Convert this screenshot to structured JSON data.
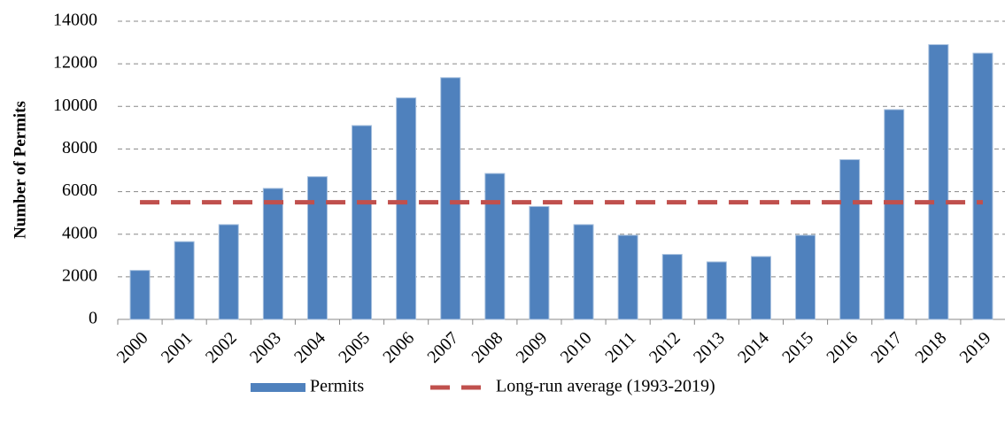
{
  "chart_data": {
    "type": "bar",
    "y_axis_label": "Number of Permits",
    "categories": [
      "2000",
      "2001",
      "2002",
      "2003",
      "2004",
      "2005",
      "2006",
      "2007",
      "2008",
      "2009",
      "2010",
      "2011",
      "2012",
      "2013",
      "2014",
      "2015",
      "2016",
      "2017",
      "2018",
      "2019"
    ],
    "series": [
      {
        "name": "Permits",
        "type": "bar",
        "color": "#4f81bd",
        "values": [
          2300,
          3650,
          4450,
          6150,
          6700,
          9100,
          10400,
          11350,
          6850,
          5300,
          4450,
          3950,
          3050,
          2700,
          2950,
          3950,
          7500,
          9850,
          12900,
          12500
        ]
      },
      {
        "name": "Long-run average (1993-2019)",
        "type": "line",
        "line_style": "dashed",
        "color": "#c0504d",
        "values": [
          5500,
          5500,
          5500,
          5500,
          5500,
          5500,
          5500,
          5500,
          5500,
          5500,
          5500,
          5500,
          5500,
          5500,
          5500,
          5500,
          5500,
          5500,
          5500,
          5500
        ]
      }
    ],
    "ylim": [
      0,
      14000
    ],
    "yticks": [
      0,
      2000,
      4000,
      6000,
      8000,
      10000,
      12000,
      14000
    ],
    "grid": true,
    "legend": "bottom"
  }
}
